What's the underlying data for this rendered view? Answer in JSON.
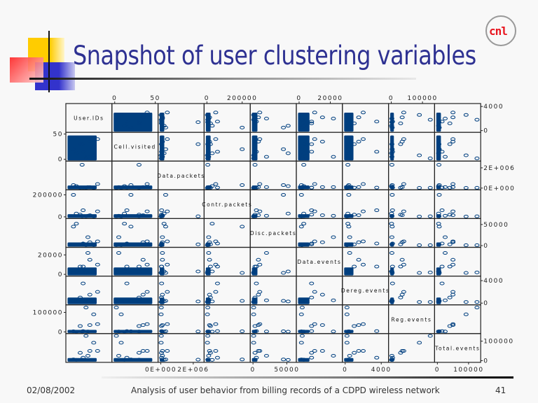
{
  "slide": {
    "title": "Snapshot of user clustering variables",
    "logo_text": "cnl",
    "footer_date": "02/08/2002",
    "footer_caption": "Analysis of user behavior from billing records of a CDPD wireless network",
    "page_number": "41"
  },
  "colors": {
    "title": "#2e3192",
    "points": "#003f7f",
    "logo": "#e8141e"
  },
  "chart_data": {
    "type": "scatter",
    "subtype": "scatterplot-matrix",
    "variables": [
      {
        "name": "User.IDs",
        "range": [
          0,
          4200
        ],
        "bulk_max": 2800,
        "axis": "right",
        "ticks": [
          {
            "v": 0,
            "label": "0"
          },
          {
            "v": 4000,
            "label": "4000"
          }
        ]
      },
      {
        "name": "Cell.visited",
        "range": [
          0,
          50
        ],
        "bulk_max": 45,
        "axis": "top-left",
        "ticks": [
          {
            "v": 0,
            "label": "0"
          },
          {
            "v": 50,
            "label": "50"
          }
        ]
      },
      {
        "name": "Data.packets",
        "range": [
          0,
          2500000
        ],
        "bulk_max": 150000,
        "axis": "right-bottom",
        "ticks": [
          {
            "v": 0,
            "label": "0E+000"
          },
          {
            "v": 2000000,
            "label": "2E+006"
          }
        ]
      },
      {
        "name": "Contr.packets",
        "range": [
          0,
          230000
        ],
        "bulk_max": 15000,
        "axis": "top-left",
        "ticks": [
          {
            "v": 0,
            "label": "0"
          },
          {
            "v": 200000,
            "label": "200000"
          }
        ]
      },
      {
        "name": "Disc.packets",
        "range": [
          0,
          60000
        ],
        "bulk_max": 5000,
        "axis": "right-bottom",
        "ticks": [
          {
            "v": 0,
            "label": "0"
          },
          {
            "v": 50000,
            "label": "50000"
          }
        ]
      },
      {
        "name": "Data.events",
        "range": [
          0,
          26000
        ],
        "bulk_max": 6000,
        "axis": "top-left",
        "ticks": [
          {
            "v": 0,
            "label": "0"
          },
          {
            "v": 20000,
            "label": "20000"
          }
        ]
      },
      {
        "name": "Dereg.events",
        "range": [
          0,
          4500
        ],
        "bulk_max": 800,
        "axis": "right-bottom",
        "ticks": [
          {
            "v": 0,
            "label": "0"
          },
          {
            "v": 4000,
            "label": "4000"
          }
        ]
      },
      {
        "name": "Reg.events",
        "range": [
          0,
          130000
        ],
        "bulk_max": 5000,
        "axis": "top-left",
        "ticks": [
          {
            "v": 0,
            "label": "0"
          },
          {
            "v": 100000,
            "label": "100000"
          }
        ]
      },
      {
        "name": "Total.events",
        "range": [
          0,
          130000
        ],
        "bulk_max": 8000,
        "axis": "right-bottom",
        "ticks": [
          {
            "v": 0,
            "label": "0"
          },
          {
            "v": 100000,
            "label": "100000"
          }
        ]
      }
    ],
    "outlier_observations": [
      [
        1400,
        30,
        2300000,
        5000,
        3000,
        3000,
        300,
        2000,
        5000
      ],
      [
        500,
        20,
        300000,
        200000,
        45000,
        1500,
        400,
        3000,
        6000
      ],
      [
        2000,
        5,
        100000,
        10000,
        20000,
        22000,
        500,
        2000,
        25000
      ],
      [
        1500,
        15,
        50000,
        60000,
        5000,
        8000,
        3500,
        4000,
        15000
      ],
      [
        1800,
        2,
        30000,
        5000,
        1000,
        2000,
        200,
        125000,
        127000
      ],
      [
        2600,
        8,
        20000,
        3000,
        1000,
        1500,
        200,
        90000,
        92000
      ],
      [
        1200,
        30,
        40000,
        20000,
        3000,
        8000,
        1000,
        30000,
        40000
      ],
      [
        3000,
        40,
        400000,
        50000,
        10000,
        10000,
        2000,
        40000,
        50000
      ],
      [
        800,
        12,
        200000,
        30000,
        52000,
        3000,
        300,
        1000,
        4000
      ],
      [
        2200,
        35,
        100000,
        15000,
        8000,
        15000,
        1500,
        35000,
        50000
      ]
    ],
    "grid": false
  }
}
